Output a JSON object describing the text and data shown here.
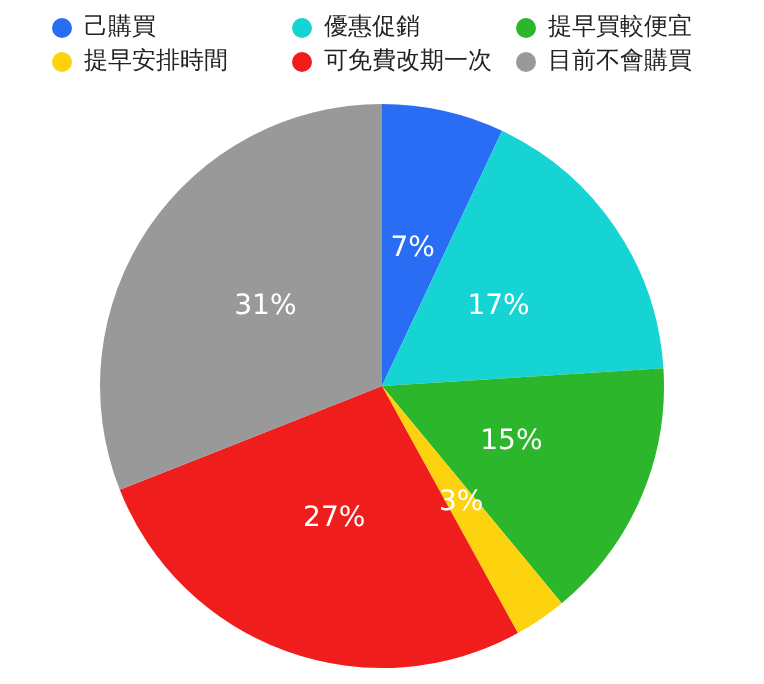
{
  "chart_data": {
    "type": "pie",
    "categories": [
      "己購買",
      "優惠促銷",
      "提早買較便宜",
      "提早安排時間",
      "可免費改期一次",
      "目前不會購買"
    ],
    "values": [
      7,
      17,
      15,
      3,
      27,
      31
    ],
    "value_labels": [
      "7%",
      "17%",
      "15%",
      "3%",
      "27%",
      "31%"
    ],
    "colors": [
      "#2a6df5",
      "#17d4d4",
      "#2bb62b",
      "#fdd20f",
      "#f01d1d",
      "#999999"
    ],
    "legend": "top"
  }
}
